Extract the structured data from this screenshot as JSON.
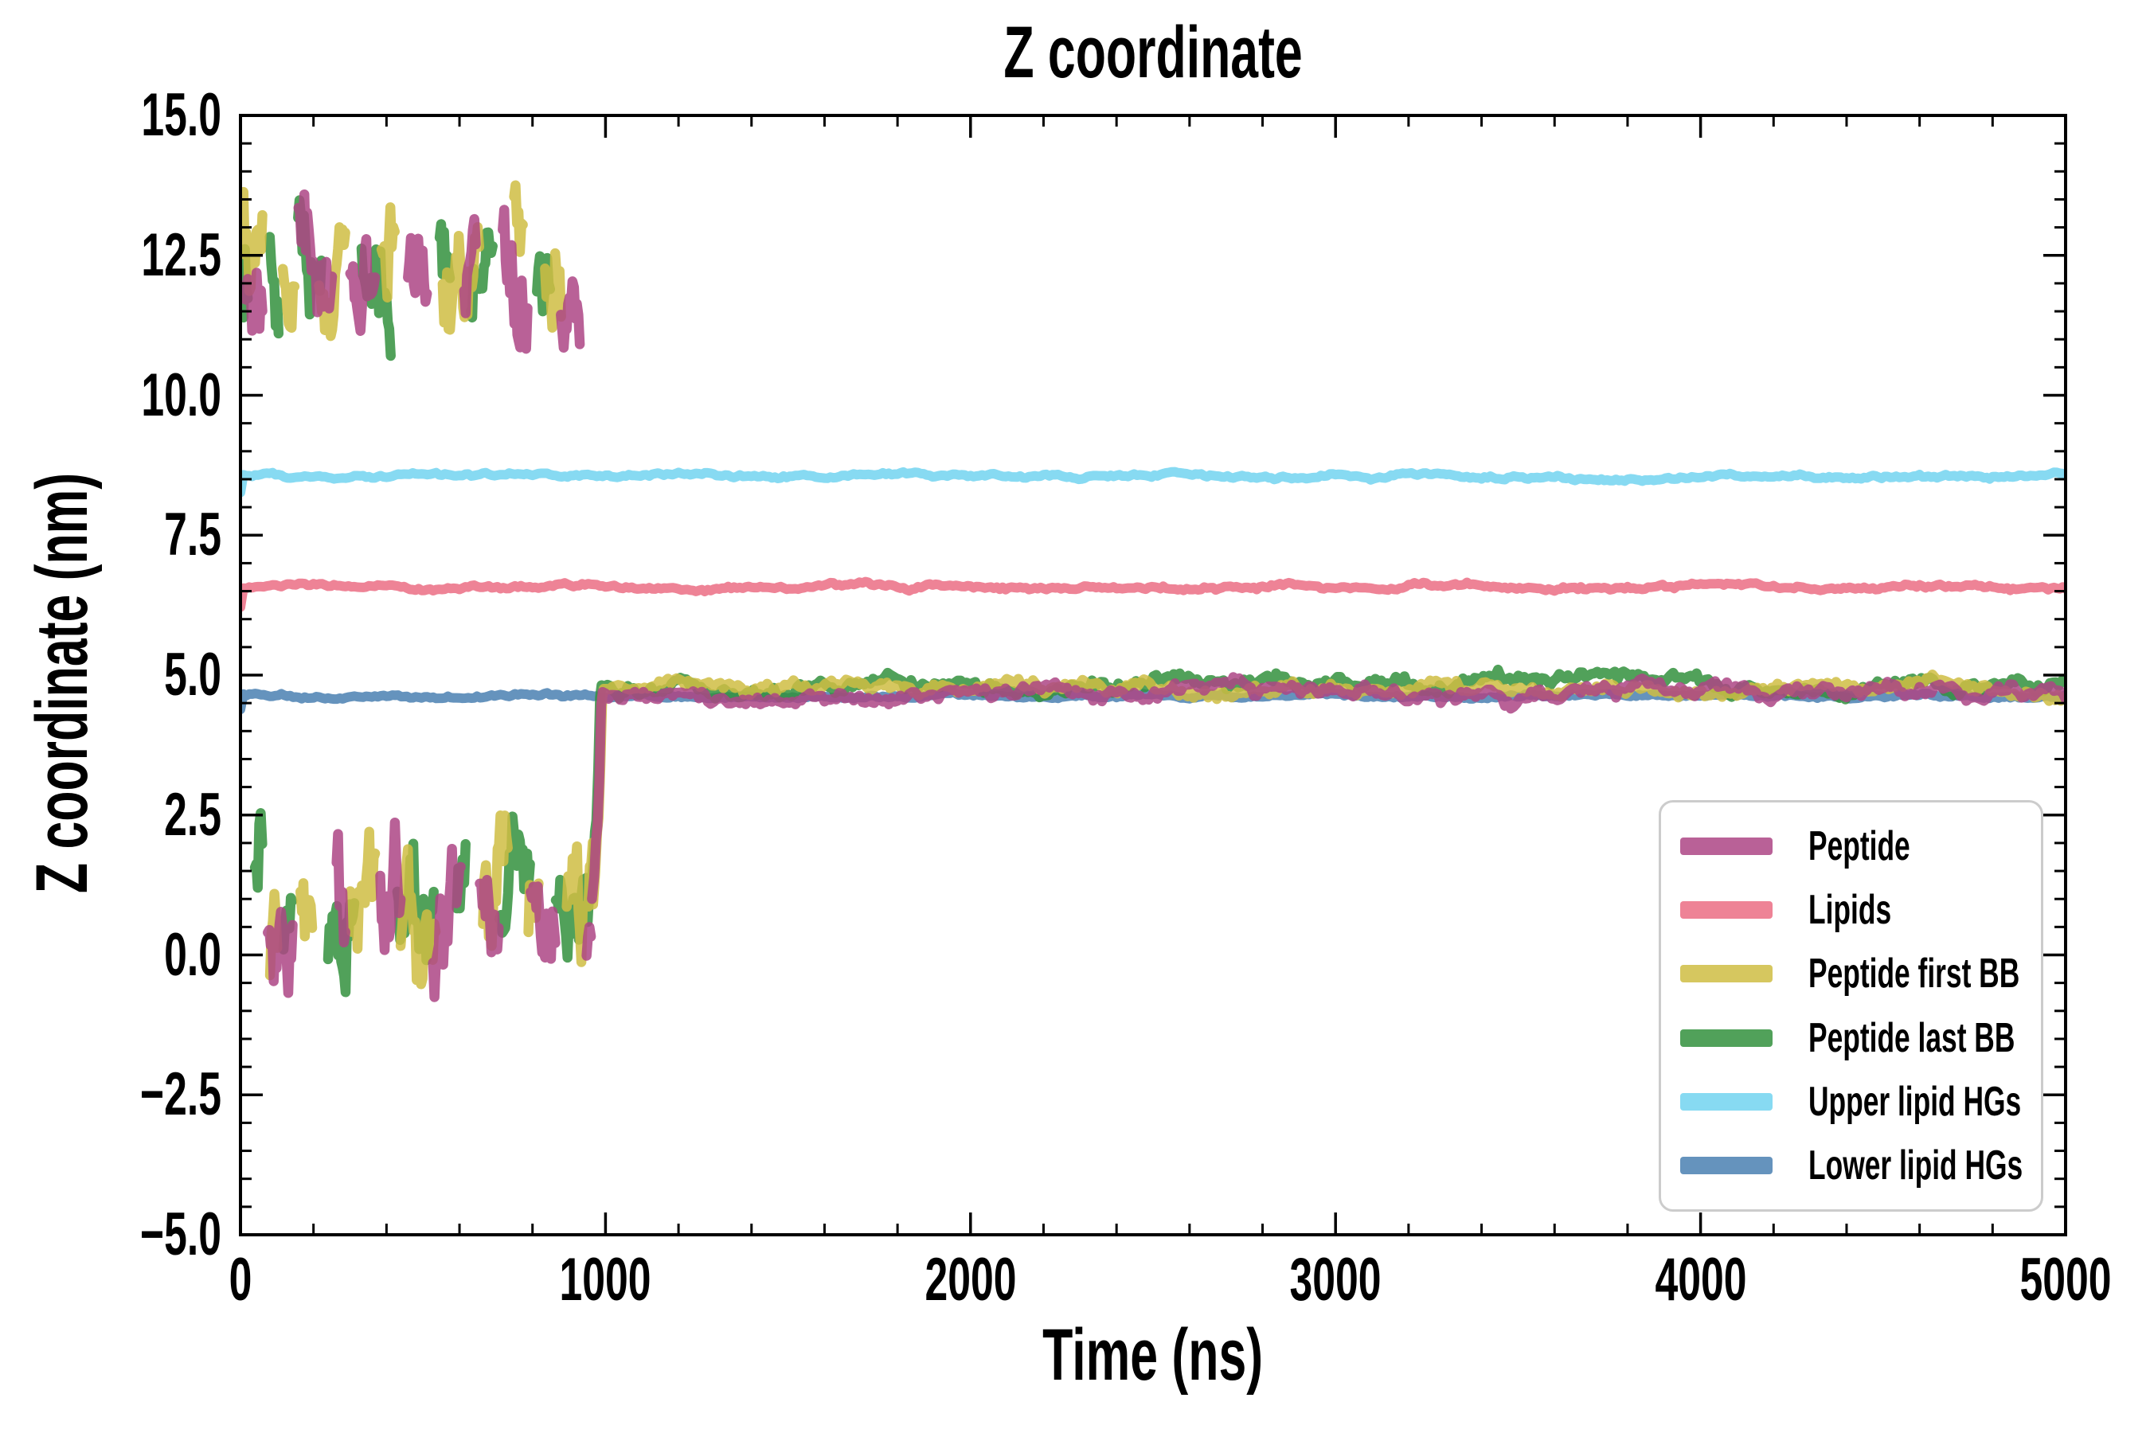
{
  "chart_data": {
    "type": "line",
    "title": "Z coordinate",
    "xlabel": "Time (ns)",
    "ylabel": "Z coordinate (nm)",
    "xlim": [
      0,
      5000
    ],
    "ylim": [
      -5.0,
      15.0
    ],
    "x_major_ticks": [
      0,
      1000,
      2000,
      3000,
      4000,
      5000
    ],
    "x_tick_labels": [
      "0",
      "1000",
      "2000",
      "3000",
      "4000",
      "5000"
    ],
    "x_minor_step": 200,
    "y_major_ticks": [
      15.0,
      12.5,
      10.0,
      7.5,
      5.0,
      2.5,
      0.0,
      -2.5,
      -5.0
    ],
    "y_tick_labels": [
      "15.0",
      "12.5",
      "10.0",
      "7.5",
      "5.0",
      "2.5",
      "0.0",
      "−2.5",
      "−5.0"
    ],
    "y_minor_step": 0.5,
    "grid": false,
    "tick_direction": "in",
    "background_color": "#ffffff",
    "spine_color": "#000000",
    "text_color": "#000000",
    "legend": {
      "position": "lower right",
      "border_color": "#cccccc",
      "face_color": "#ffffff"
    },
    "draw_order": [
      4,
      1,
      5,
      3,
      2,
      0
    ],
    "series": [
      {
        "name": "Peptide",
        "color": "#ad4585",
        "opacity": 0.85,
        "line_width": 12.5,
        "seed": 11,
        "pbc_phase": {
          "t_range": [
            0,
            963
          ],
          "start_cluster": "top",
          "sample_step": 4,
          "segment_ns": [
            18,
            105
          ],
          "gap_ns": [
            6,
            18
          ],
          "top": {
            "center": 12.15,
            "wander": 1.0,
            "jitter": 0.38,
            "clamp": [
              9.35,
              13.7
            ]
          },
          "bottom": {
            "center": 0.95,
            "wander": 1.05,
            "jitter": 0.42,
            "clamp": [
              -1.0,
              2.6
            ]
          }
        },
        "transition": [
          [
            963,
            1.0
          ],
          [
            969,
            1.4
          ],
          [
            974,
            2.05
          ],
          [
            978,
            2.3
          ],
          [
            983,
            3.1
          ],
          [
            988,
            4.45
          ],
          [
            992,
            4.68
          ]
        ],
        "flat_phase": {
          "t_range": [
            992,
            5000
          ],
          "baseline": 4.67,
          "wander": 0.25,
          "jitter": 0.05,
          "sample_step": 8
        }
      },
      {
        "name": "Lipids",
        "color": "#eb6d84",
        "opacity": 0.85,
        "line_width": 12,
        "seed": 23,
        "flat_phase": {
          "t_range": [
            0,
            5000
          ],
          "baseline": 6.575,
          "wander": 0.08,
          "jitter": 0.015,
          "sample_step": 8
        },
        "start_dip": {
          "duration": 9,
          "depth": 0.33
        }
      },
      {
        "name": "Peptide first BB",
        "color": "#cfbd43",
        "opacity": 0.85,
        "line_width": 12.5,
        "seed": 37,
        "pbc_phase": {
          "t_range": [
            0,
            966
          ],
          "start_cluster": "top",
          "sample_step": 4,
          "segment_ns": [
            18,
            105
          ],
          "gap_ns": [
            6,
            18
          ],
          "top": {
            "center": 12.3,
            "wander": 1.1,
            "jitter": 0.4,
            "clamp": [
              9.6,
              14.05
            ]
          },
          "bottom": {
            "center": 0.9,
            "wander": 1.1,
            "jitter": 0.45,
            "clamp": [
              -1.25,
              2.6
            ]
          }
        },
        "transition": [
          [
            966,
            0.9
          ],
          [
            972,
            1.5
          ],
          [
            977,
            2.2
          ],
          [
            981,
            2.45
          ],
          [
            986,
            3.4
          ],
          [
            991,
            4.6
          ],
          [
            995,
            4.73
          ]
        ],
        "flat_phase": {
          "t_range": [
            995,
            5000
          ],
          "baseline": 4.74,
          "wander": 0.22,
          "jitter": 0.05,
          "sample_step": 8
        }
      },
      {
        "name": "Peptide last BB",
        "color": "#33903d",
        "opacity": 0.85,
        "line_width": 12.5,
        "seed": 53,
        "pbc_phase": {
          "t_range": [
            0,
            960
          ],
          "start_cluster": "top",
          "sample_step": 4,
          "segment_ns": [
            18,
            105
          ],
          "gap_ns": [
            6,
            18
          ],
          "top": {
            "center": 12.2,
            "wander": 1.05,
            "jitter": 0.4,
            "clamp": [
              10.0,
              13.8
            ]
          },
          "bottom": {
            "center": 1.05,
            "wander": 1.05,
            "jitter": 0.45,
            "clamp": [
              -0.9,
              2.65
            ]
          }
        },
        "transition": [
          [
            960,
            1.1
          ],
          [
            966,
            1.6
          ],
          [
            971,
            2.2
          ],
          [
            975,
            2.4
          ],
          [
            980,
            3.3
          ],
          [
            985,
            4.6
          ],
          [
            989,
            4.82
          ]
        ],
        "flat_phase": {
          "t_range": [
            989,
            5000
          ],
          "baseline": 4.82,
          "wander": 0.25,
          "jitter": 0.05,
          "sample_step": 8
        }
      },
      {
        "name": "Upper lipid HGs",
        "color": "#72d3f0",
        "opacity": 0.85,
        "line_width": 12,
        "seed": 71,
        "flat_phase": {
          "t_range": [
            0,
            5000
          ],
          "baseline": 8.56,
          "wander": 0.08,
          "jitter": 0.012,
          "sample_step": 8
        },
        "start_dip": {
          "duration": 8,
          "depth": 0.3
        }
      },
      {
        "name": "Lower lipid HGs",
        "color": "#4a80b2",
        "opacity": 0.85,
        "line_width": 12,
        "seed": 89,
        "flat_phase": {
          "t_range": [
            0,
            5000
          ],
          "baseline": 4.63,
          "wander": 0.06,
          "jitter": 0.012,
          "sample_step": 8
        },
        "start_dip": {
          "duration": 8,
          "depth": 0.25
        }
      }
    ]
  }
}
